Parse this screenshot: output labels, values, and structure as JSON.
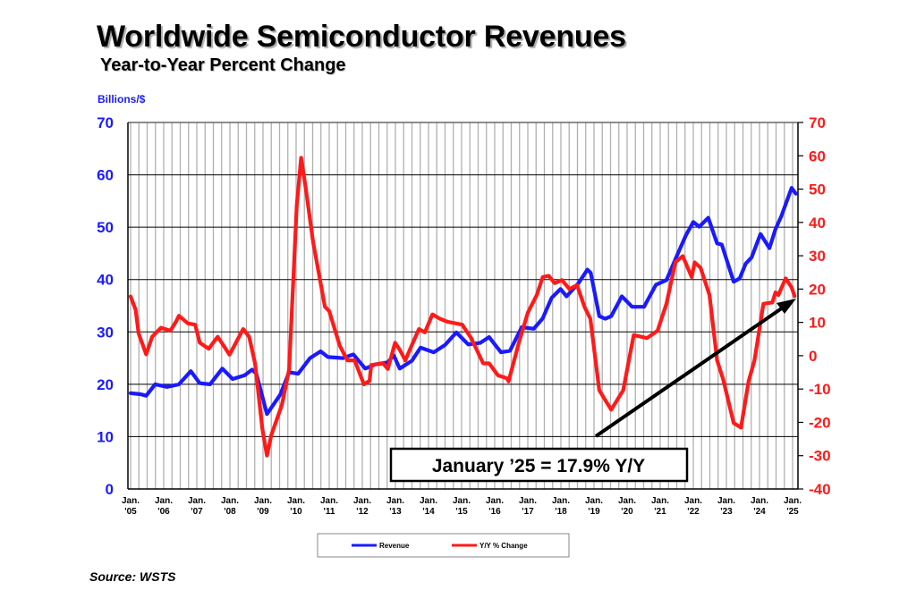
{
  "chart_data": {
    "type": "line",
    "title": "Worldwide Semiconductor Revenues",
    "subtitle": "Year-to-Year Percent Change",
    "ylabel_left": "Billions/$",
    "ylim_left": [
      0,
      70
    ],
    "yticks_left": [
      0,
      10,
      20,
      30,
      40,
      50,
      60,
      70
    ],
    "ylim_right": [
      -40,
      70
    ],
    "yticks_right": [
      -40,
      -30,
      -20,
      -10,
      0,
      10,
      20,
      30,
      40,
      50,
      60,
      70
    ],
    "xlim": [
      2004.92,
      2025.2
    ],
    "xticks": [
      {
        "year": 2005,
        "label1": "Jan.",
        "label2": "'05"
      },
      {
        "year": 2006,
        "label1": "Jan.",
        "label2": "'06"
      },
      {
        "year": 2007,
        "label1": "Jan.",
        "label2": "'07"
      },
      {
        "year": 2008,
        "label1": "Jan.",
        "label2": "'08"
      },
      {
        "year": 2009,
        "label1": "Jan.",
        "label2": "'09"
      },
      {
        "year": 2010,
        "label1": "Jan.",
        "label2": "'10"
      },
      {
        "year": 2011,
        "label1": "Jan.",
        "label2": "'11"
      },
      {
        "year": 2012,
        "label1": "Jan.",
        "label2": "'12"
      },
      {
        "year": 2013,
        "label1": "Jan.",
        "label2": "'13"
      },
      {
        "year": 2014,
        "label1": "Jan.",
        "label2": "'14"
      },
      {
        "year": 2015,
        "label1": "Jan.",
        "label2": "'15"
      },
      {
        "year": 2016,
        "label1": "Jan.",
        "label2": "'16"
      },
      {
        "year": 2017,
        "label1": "Jan.",
        "label2": "'17"
      },
      {
        "year": 2018,
        "label1": "Jan.",
        "label2": "'18"
      },
      {
        "year": 2019,
        "label1": "Jan.",
        "label2": "'19"
      },
      {
        "year": 2020,
        "label1": "Jan.",
        "label2": "'20"
      },
      {
        "year": 2021,
        "label1": "Jan.",
        "label2": "'21"
      },
      {
        "year": 2022,
        "label1": "Jan.",
        "label2": "'22"
      },
      {
        "year": 2023,
        "label1": "Jan.",
        "label2": "'23"
      },
      {
        "year": 2024,
        "label1": "Jan.",
        "label2": "'24"
      },
      {
        "year": 2025,
        "label1": "Jan.",
        "label2": "'25"
      }
    ],
    "grid": "horizontal at left ticks, vertical quarterly",
    "legend_position": "bottom-center",
    "series": [
      {
        "name": "Revenue",
        "axis": "left",
        "color": "#1a1aff",
        "points": [
          [
            2005.0,
            18.3
          ],
          [
            2005.3,
            18.1
          ],
          [
            2005.47,
            17.8
          ],
          [
            2005.74,
            20.0
          ],
          [
            2006.1,
            19.5
          ],
          [
            2006.46,
            20.0
          ],
          [
            2006.82,
            22.5
          ],
          [
            2007.09,
            20.2
          ],
          [
            2007.4,
            20.0
          ],
          [
            2007.77,
            23.0
          ],
          [
            2008.08,
            21.0
          ],
          [
            2008.44,
            21.7
          ],
          [
            2008.67,
            22.8
          ],
          [
            2008.8,
            22.0
          ],
          [
            2009.12,
            14.3
          ],
          [
            2009.52,
            18.0
          ],
          [
            2009.79,
            22.3
          ],
          [
            2010.06,
            22.0
          ],
          [
            2010.42,
            25.0
          ],
          [
            2010.74,
            26.3
          ],
          [
            2010.96,
            25.2
          ],
          [
            2011.41,
            25.0
          ],
          [
            2011.73,
            25.7
          ],
          [
            2012.09,
            23.0
          ],
          [
            2012.4,
            23.8
          ],
          [
            2012.77,
            24.2
          ],
          [
            2012.95,
            25.5
          ],
          [
            2013.13,
            23.0
          ],
          [
            2013.5,
            24.5
          ],
          [
            2013.76,
            27.0
          ],
          [
            2014.16,
            26.1
          ],
          [
            2014.5,
            27.5
          ],
          [
            2014.84,
            29.9
          ],
          [
            2015.2,
            27.6
          ],
          [
            2015.56,
            27.9
          ],
          [
            2015.83,
            29.0
          ],
          [
            2016.19,
            26.1
          ],
          [
            2016.46,
            26.4
          ],
          [
            2016.82,
            30.9
          ],
          [
            2017.18,
            30.6
          ],
          [
            2017.45,
            32.6
          ],
          [
            2017.72,
            36.5
          ],
          [
            2017.99,
            38.2
          ],
          [
            2018.17,
            36.8
          ],
          [
            2018.53,
            39.3
          ],
          [
            2018.8,
            41.9
          ],
          [
            2018.9,
            41.3
          ],
          [
            2019.16,
            33.0
          ],
          [
            2019.34,
            32.5
          ],
          [
            2019.52,
            33.0
          ],
          [
            2019.84,
            36.8
          ],
          [
            2020.15,
            34.8
          ],
          [
            2020.51,
            34.8
          ],
          [
            2020.87,
            39.0
          ],
          [
            2021.19,
            39.9
          ],
          [
            2021.5,
            44.5
          ],
          [
            2021.78,
            48.5
          ],
          [
            2022.0,
            51.0
          ],
          [
            2022.18,
            50.1
          ],
          [
            2022.45,
            51.8
          ],
          [
            2022.72,
            46.9
          ],
          [
            2022.86,
            46.7
          ],
          [
            2023.22,
            39.6
          ],
          [
            2023.4,
            40.2
          ],
          [
            2023.58,
            43.0
          ],
          [
            2023.76,
            44.2
          ],
          [
            2024.03,
            48.7
          ],
          [
            2024.3,
            46.0
          ],
          [
            2024.48,
            49.6
          ],
          [
            2024.66,
            52.1
          ],
          [
            2024.97,
            57.5
          ],
          [
            2025.1,
            56.4
          ]
        ]
      },
      {
        "name": "Y/Y % Change",
        "axis": "right",
        "color": "#ff1a1a",
        "points": [
          [
            2005.0,
            17.8
          ],
          [
            2005.15,
            13.8
          ],
          [
            2005.24,
            6.7
          ],
          [
            2005.47,
            0.4
          ],
          [
            2005.65,
            5.7
          ],
          [
            2005.92,
            8.4
          ],
          [
            2006.2,
            7.5
          ],
          [
            2006.37,
            10.2
          ],
          [
            2006.46,
            12.0
          ],
          [
            2006.73,
            9.7
          ],
          [
            2006.95,
            9.3
          ],
          [
            2007.09,
            3.9
          ],
          [
            2007.36,
            2.1
          ],
          [
            2007.63,
            5.7
          ],
          [
            2007.81,
            3.0
          ],
          [
            2007.99,
            0.3
          ],
          [
            2008.4,
            8.0
          ],
          [
            2008.58,
            5.7
          ],
          [
            2008.76,
            -2.3
          ],
          [
            2008.98,
            -22.0
          ],
          [
            2009.12,
            -30.0
          ],
          [
            2009.25,
            -23.8
          ],
          [
            2009.57,
            -14.8
          ],
          [
            2009.79,
            -4.1
          ],
          [
            2010.02,
            45.0
          ],
          [
            2010.15,
            59.4
          ],
          [
            2010.29,
            50.4
          ],
          [
            2010.51,
            34.3
          ],
          [
            2010.87,
            14.7
          ],
          [
            2011.0,
            13.4
          ],
          [
            2011.32,
            3.0
          ],
          [
            2011.55,
            -1.4
          ],
          [
            2011.77,
            -1.4
          ],
          [
            2012.05,
            -8.6
          ],
          [
            2012.22,
            -7.5
          ],
          [
            2012.27,
            -2.8
          ],
          [
            2012.63,
            -2.3
          ],
          [
            2012.77,
            -4.0
          ],
          [
            2012.99,
            3.9
          ],
          [
            2013.13,
            1.8
          ],
          [
            2013.3,
            -1.4
          ],
          [
            2013.49,
            3.0
          ],
          [
            2013.71,
            8.0
          ],
          [
            2013.89,
            7.0
          ],
          [
            2014.12,
            12.4
          ],
          [
            2014.34,
            11.1
          ],
          [
            2014.57,
            10.2
          ],
          [
            2015.02,
            9.3
          ],
          [
            2015.29,
            5.3
          ],
          [
            2015.65,
            -2.3
          ],
          [
            2015.83,
            -2.3
          ],
          [
            2016.1,
            -5.9
          ],
          [
            2016.37,
            -6.8
          ],
          [
            2016.42,
            -7.7
          ],
          [
            2016.73,
            3.9
          ],
          [
            2017.0,
            12.9
          ],
          [
            2017.27,
            18.2
          ],
          [
            2017.45,
            23.6
          ],
          [
            2017.63,
            24.0
          ],
          [
            2017.81,
            21.8
          ],
          [
            2018.03,
            22.7
          ],
          [
            2018.26,
            20.0
          ],
          [
            2018.49,
            21.2
          ],
          [
            2018.71,
            14.7
          ],
          [
            2018.89,
            11.1
          ],
          [
            2019.16,
            -10.4
          ],
          [
            2019.52,
            -16.2
          ],
          [
            2019.88,
            -10.4
          ],
          [
            2020.2,
            6.2
          ],
          [
            2020.6,
            5.3
          ],
          [
            2020.92,
            7.5
          ],
          [
            2021.19,
            15.6
          ],
          [
            2021.46,
            28.1
          ],
          [
            2021.68,
            29.9
          ],
          [
            2021.95,
            23.6
          ],
          [
            2022.04,
            28.0
          ],
          [
            2022.22,
            26.4
          ],
          [
            2022.49,
            18.2
          ],
          [
            2022.72,
            -1.4
          ],
          [
            2022.9,
            -7.0
          ],
          [
            2023.22,
            -20.2
          ],
          [
            2023.44,
            -21.6
          ],
          [
            2023.67,
            -7.7
          ],
          [
            2023.85,
            -1.4
          ],
          [
            2024.12,
            15.6
          ],
          [
            2024.39,
            16.0
          ],
          [
            2024.48,
            19.0
          ],
          [
            2024.57,
            18.2
          ],
          [
            2024.79,
            23.2
          ],
          [
            2024.97,
            20.5
          ],
          [
            2025.06,
            17.9
          ]
        ]
      }
    ],
    "annotation": "January ’25 = 17.9% Y/Y",
    "source": "Source: WSTS"
  },
  "legend": {
    "revenue": "Revenue",
    "yy": "Y/Y % Change"
  }
}
